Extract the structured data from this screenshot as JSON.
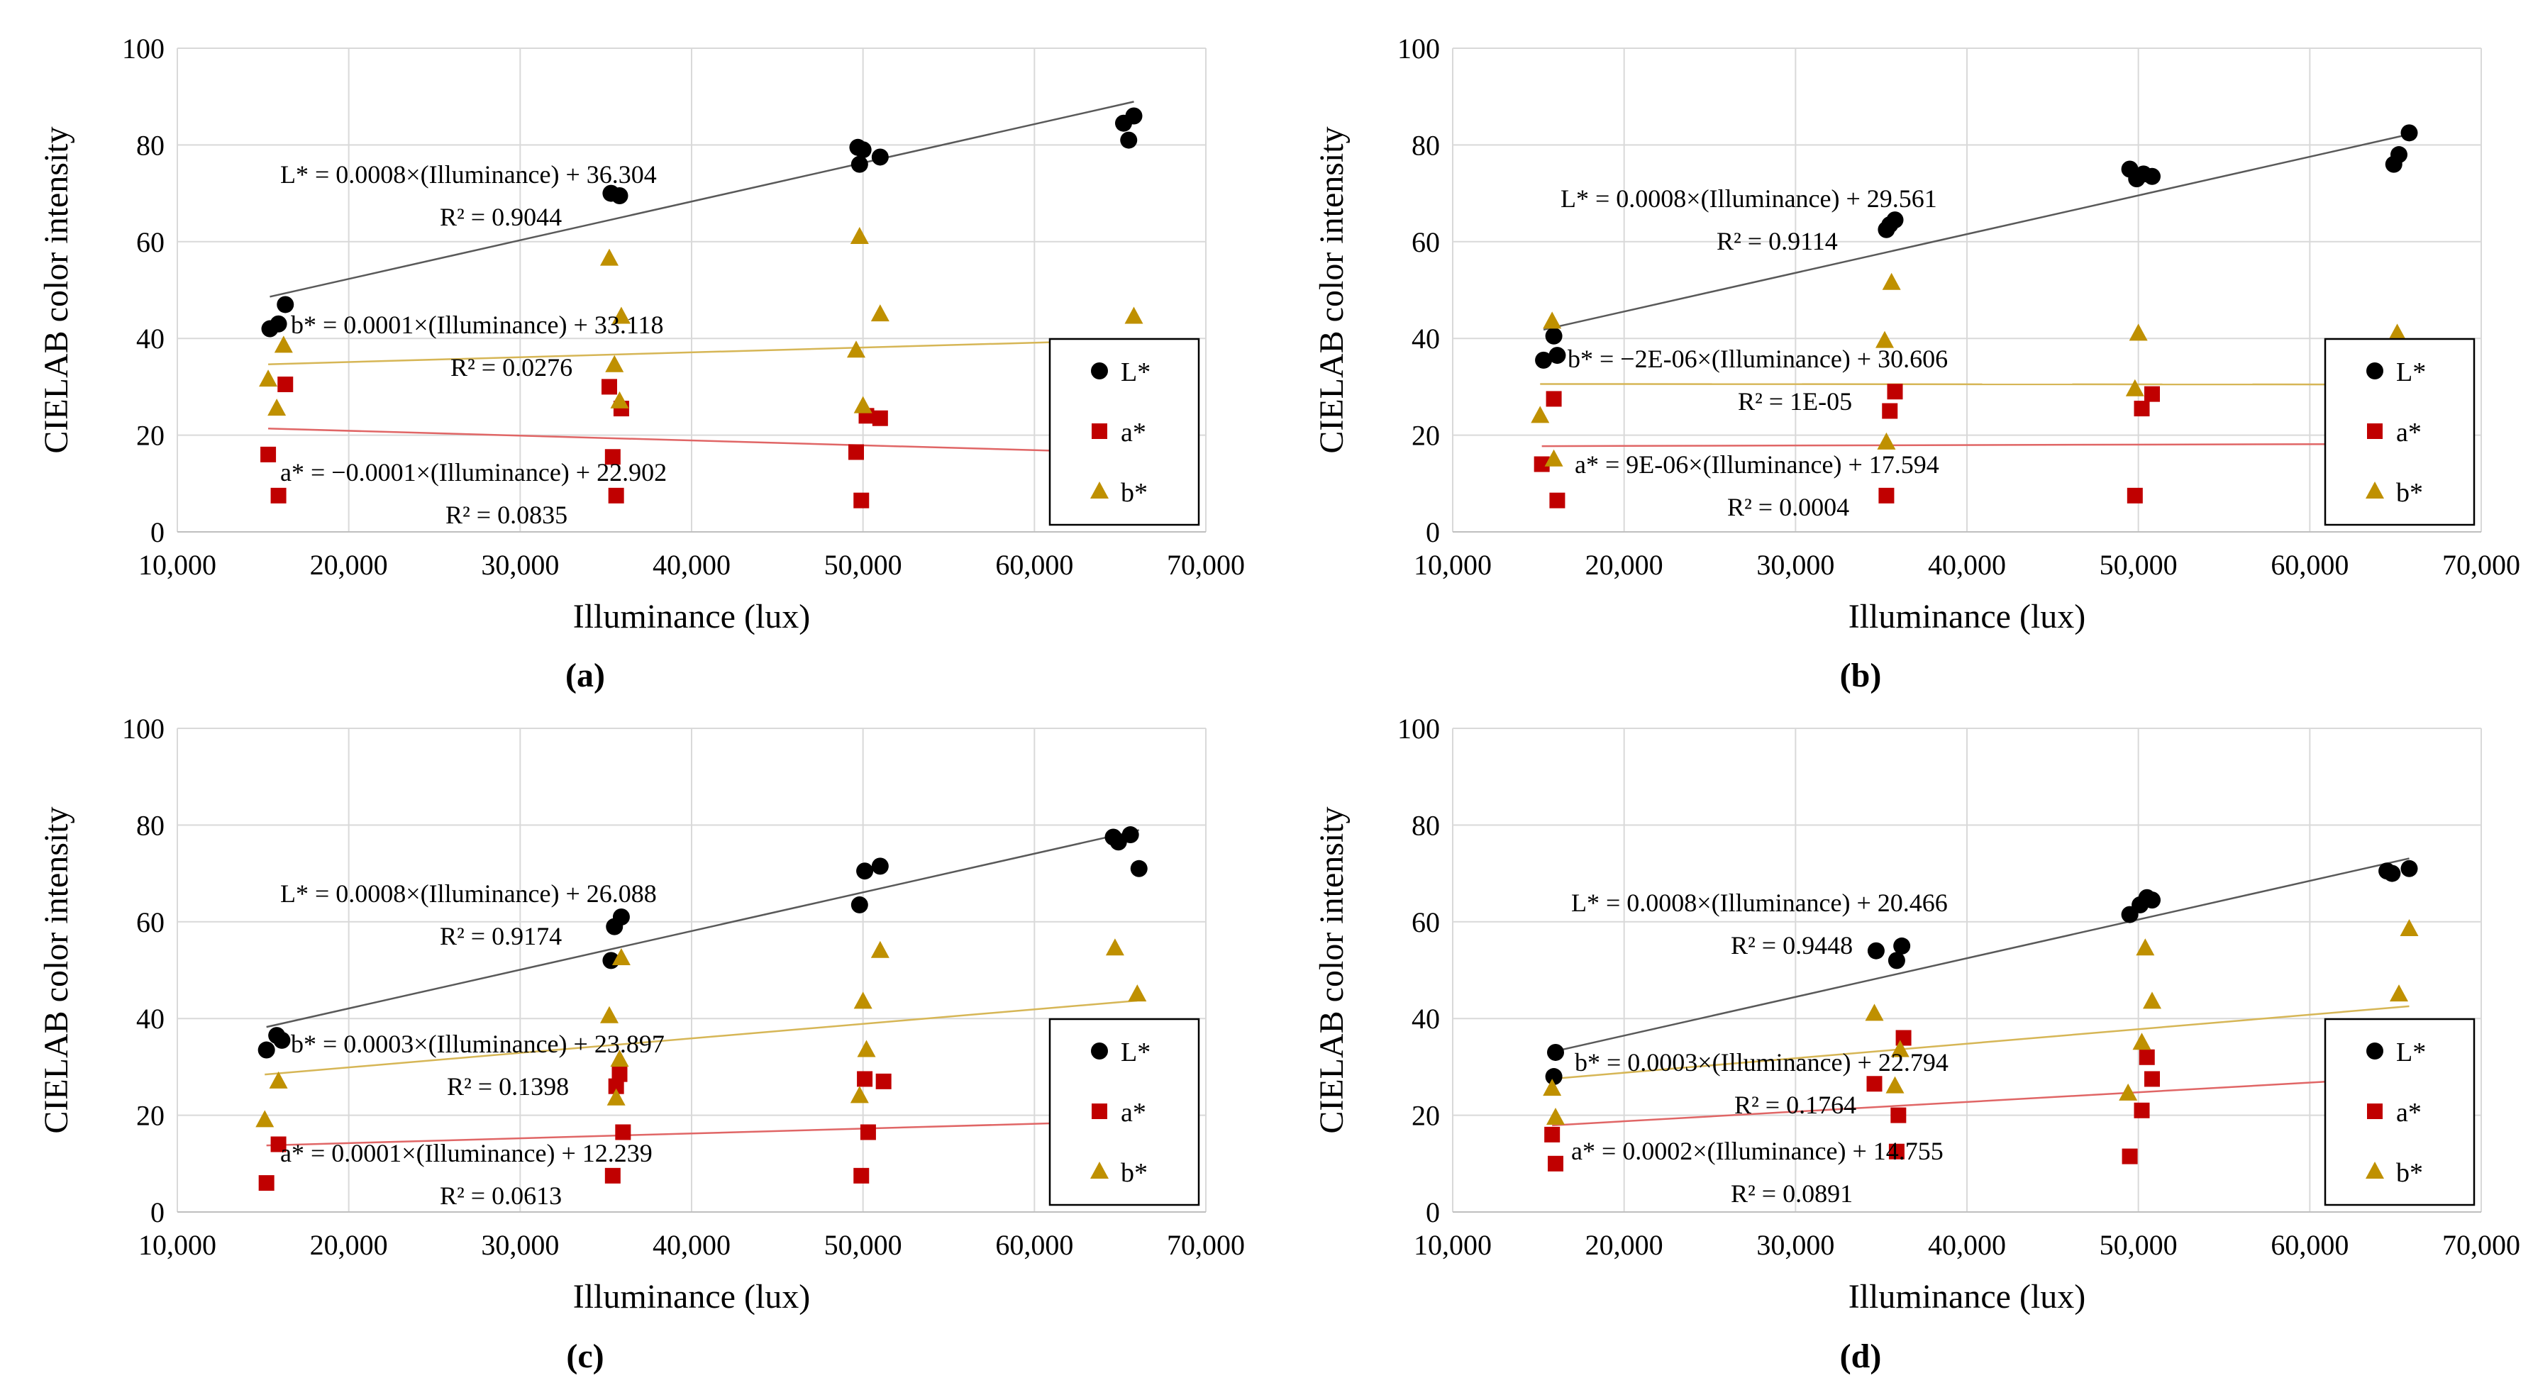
{
  "figure": {
    "colors": {
      "L": "#000000",
      "a": "#c00000",
      "b": "#bf9000",
      "L_line": "#595959",
      "a_line": "#e06666",
      "b_line": "#d6b656",
      "grid": "#d9d9d9"
    },
    "series_labels": {
      "L": "L*",
      "a": "a*",
      "b": "b*"
    },
    "marker_icons": {
      "L": "circle-icon",
      "a": "square-icon",
      "b": "triangle-icon"
    }
  },
  "chart_data": [
    {
      "type": "scatter",
      "panel_label": "(a)",
      "xlabel": "Illuminance (lux)",
      "ylabel": "CIELAB color intensity",
      "xlim": [
        10000,
        70000
      ],
      "ylim": [
        0,
        100
      ],
      "x_ticks": [
        "10,000",
        "20,000",
        "30,000",
        "40,000",
        "50,000",
        "60,000",
        "70,000"
      ],
      "y_ticks": [
        "0",
        "20",
        "40",
        "60",
        "80",
        "100"
      ],
      "legend": [
        "L*",
        "a*",
        "b*"
      ],
      "series": [
        {
          "name": "L*",
          "x": [
            15400,
            15900,
            16300,
            35300,
            35800,
            49700,
            49800,
            50000,
            51000,
            65200,
            65500,
            65800
          ],
          "y": [
            42,
            43,
            47,
            70,
            69.5,
            79.5,
            76,
            79,
            77.5,
            84.5,
            81,
            86
          ],
          "trend": {
            "slope": 0.0008,
            "intercept": 36.304,
            "x_range": [
              15400,
              65800
            ]
          },
          "equation": "L* = 0.0008×(Illuminance) + 36.304",
          "r2": "R² = 0.9044"
        },
        {
          "name": "a*",
          "x": [
            15300,
            15900,
            16300,
            35200,
            35400,
            35600,
            35900,
            49600,
            49900,
            50200,
            51000
          ],
          "y": [
            16,
            7.5,
            30.5,
            30,
            15.5,
            7.5,
            25.5,
            16.5,
            6.5,
            24,
            23.5
          ],
          "trend": {
            "slope": -0.0001,
            "intercept": 22.902,
            "x_range": [
              15300,
              65800
            ]
          },
          "equation": "a* = −0.0001×(Illuminance) + 22.902",
          "r2": "R² = 0.0835"
        },
        {
          "name": "b*",
          "x": [
            15300,
            15800,
            16200,
            35200,
            35500,
            35800,
            35900,
            49600,
            49800,
            50000,
            51000,
            65800
          ],
          "y": [
            31.5,
            25.5,
            38.5,
            56.5,
            34.5,
            27,
            44.5,
            37.5,
            61,
            26,
            45,
            44.5
          ],
          "trend": {
            "slope": 0.0001,
            "intercept": 33.118,
            "x_range": [
              15300,
              65800
            ]
          },
          "equation": "b* = 0.0001×(Illuminance) + 33.118",
          "r2": "R² = 0.0276"
        }
      ]
    },
    {
      "type": "scatter",
      "panel_label": "(b)",
      "xlabel": "Illuminance (lux)",
      "ylabel": "CIELAB color intensity",
      "xlim": [
        10000,
        70000
      ],
      "ylim": [
        0,
        100
      ],
      "x_ticks": [
        "10,000",
        "20,000",
        "30,000",
        "40,000",
        "50,000",
        "60,000",
        "70,000"
      ],
      "y_ticks": [
        "0",
        "20",
        "40",
        "60",
        "80",
        "100"
      ],
      "legend": [
        "L*",
        "a*",
        "b*"
      ],
      "series": [
        {
          "name": "L*",
          "x": [
            15300,
            15900,
            16100,
            35300,
            35500,
            35800,
            49500,
            49900,
            50300,
            50800,
            64900,
            65200,
            65800
          ],
          "y": [
            35.5,
            40.5,
            36.5,
            62.5,
            63.5,
            64.5,
            75,
            73,
            74,
            73.5,
            76,
            78,
            82.5
          ],
          "trend": {
            "slope": 0.0008,
            "intercept": 29.561,
            "x_range": [
              15300,
              65800
            ]
          },
          "equation": "L* = 0.0008×(Illuminance) + 29.561",
          "r2": "R² = 0.9114"
        },
        {
          "name": "a*",
          "x": [
            15200,
            15900,
            16100,
            35300,
            35500,
            35800,
            49800,
            50200,
            50800
          ],
          "y": [
            14,
            27.5,
            6.5,
            7.5,
            25,
            29,
            7.5,
            25.5,
            28.5
          ],
          "trend": {
            "slope": 9e-06,
            "intercept": 17.594,
            "x_range": [
              15200,
              65800
            ]
          },
          "equation": "a* = 9E-06×(Illuminance) + 17.594",
          "r2": "R² = 0.0004"
        },
        {
          "name": "b*",
          "x": [
            15100,
            15800,
            15900,
            35200,
            35300,
            35600,
            49800,
            50000,
            65100
          ],
          "y": [
            24,
            43.5,
            15,
            39.5,
            18.5,
            51.5,
            29.5,
            41,
            41
          ],
          "trend": {
            "slope": -2e-06,
            "intercept": 30.606,
            "x_range": [
              15100,
              65800
            ]
          },
          "equation": "b* = −2E-06×(Illuminance) + 30.606",
          "r2": "R² = 1E-05"
        }
      ]
    },
    {
      "type": "scatter",
      "panel_label": "(c)",
      "xlabel": "Illuminance (lux)",
      "ylabel": "CIELAB color intensity",
      "xlim": [
        10000,
        70000
      ],
      "ylim": [
        0,
        100
      ],
      "x_ticks": [
        "10,000",
        "20,000",
        "30,000",
        "40,000",
        "50,000",
        "60,000",
        "70,000"
      ],
      "y_ticks": [
        "0",
        "20",
        "40",
        "60",
        "80",
        "100"
      ],
      "legend": [
        "L*",
        "a*",
        "b*"
      ],
      "series": [
        {
          "name": "L*",
          "x": [
            15200,
            15800,
            16100,
            35300,
            35500,
            35900,
            49800,
            50100,
            51000,
            64600,
            64900,
            65600,
            66100
          ],
          "y": [
            33.5,
            36.5,
            35.5,
            52,
            59,
            61,
            63.5,
            70.5,
            71.5,
            77.5,
            76.5,
            78,
            71
          ],
          "trend": {
            "slope": 0.0008,
            "intercept": 26.088,
            "x_range": [
              15200,
              66100
            ]
          },
          "equation": "L* = 0.0008×(Illuminance) + 26.088",
          "r2": "R² = 0.9174"
        },
        {
          "name": "a*",
          "x": [
            15200,
            15900,
            35400,
            35600,
            35800,
            36000,
            49900,
            50100,
            50300,
            51200
          ],
          "y": [
            6,
            14,
            7.5,
            26,
            28.5,
            16.5,
            7.5,
            27.5,
            16.5,
            27
          ],
          "trend": {
            "slope": 0.0001,
            "intercept": 12.239,
            "x_range": [
              15200,
              66100
            ]
          },
          "equation": "a* = 0.0001×(Illuminance) + 12.239",
          "r2": "R² = 0.0613"
        },
        {
          "name": "b*",
          "x": [
            15100,
            15900,
            35200,
            35600,
            35800,
            35900,
            49800,
            50000,
            50200,
            51000,
            64700,
            66000
          ],
          "y": [
            19,
            27,
            40.5,
            23.5,
            31.5,
            52.5,
            24,
            43.5,
            33.5,
            54,
            54.5,
            45
          ],
          "trend": {
            "slope": 0.0003,
            "intercept": 23.897,
            "x_range": [
              15100,
              66000
            ]
          },
          "equation": "b* = 0.0003×(Illuminance) + 23.897",
          "r2": "R² = 0.1398"
        }
      ]
    },
    {
      "type": "scatter",
      "panel_label": "(d)",
      "xlabel": "Illuminance (lux)",
      "ylabel": "CIELAB color intensity",
      "xlim": [
        10000,
        70000
      ],
      "ylim": [
        0,
        100
      ],
      "x_ticks": [
        "10,000",
        "20,000",
        "30,000",
        "40,000",
        "50,000",
        "60,000",
        "70,000"
      ],
      "y_ticks": [
        "0",
        "20",
        "40",
        "60",
        "80",
        "100"
      ],
      "legend": [
        "L*",
        "a*",
        "b*"
      ],
      "series": [
        {
          "name": "L*",
          "x": [
            15900,
            16000,
            34700,
            35900,
            36200,
            49500,
            50100,
            50500,
            50800,
            64500,
            64800,
            65800
          ],
          "y": [
            28,
            33,
            54,
            52,
            55,
            61.5,
            63.5,
            65,
            64.5,
            70.5,
            70,
            71
          ],
          "trend": {
            "slope": 0.0008,
            "intercept": 20.466,
            "x_range": [
              15900,
              65800
            ]
          },
          "equation": "L* = 0.0008×(Illuminance) + 20.466",
          "r2": "R² = 0.9448"
        },
        {
          "name": "a*",
          "x": [
            15800,
            16000,
            34600,
            35900,
            36000,
            36300,
            49500,
            50200,
            50500,
            50800
          ],
          "y": [
            16,
            10,
            26.5,
            12.5,
            20,
            36,
            11.5,
            21,
            32,
            27.5
          ],
          "trend": {
            "slope": 0.0002,
            "intercept": 14.755,
            "x_range": [
              15800,
              65800
            ]
          },
          "equation": "a* = 0.0002×(Illuminance) + 14.755",
          "r2": "R² = 0.0891"
        },
        {
          "name": "b*",
          "x": [
            15800,
            16000,
            34600,
            35800,
            36100,
            49400,
            50200,
            50400,
            50800,
            65200,
            65800
          ],
          "y": [
            25.5,
            19.5,
            41,
            26,
            33.5,
            24.5,
            35,
            54.5,
            43.5,
            45,
            58.5
          ],
          "trend": {
            "slope": 0.0003,
            "intercept": 22.794,
            "x_range": [
              15800,
              65800
            ]
          },
          "equation": "b* = 0.0003×(Illuminance) + 22.794",
          "r2": "R² = 0.1764"
        }
      ]
    }
  ]
}
